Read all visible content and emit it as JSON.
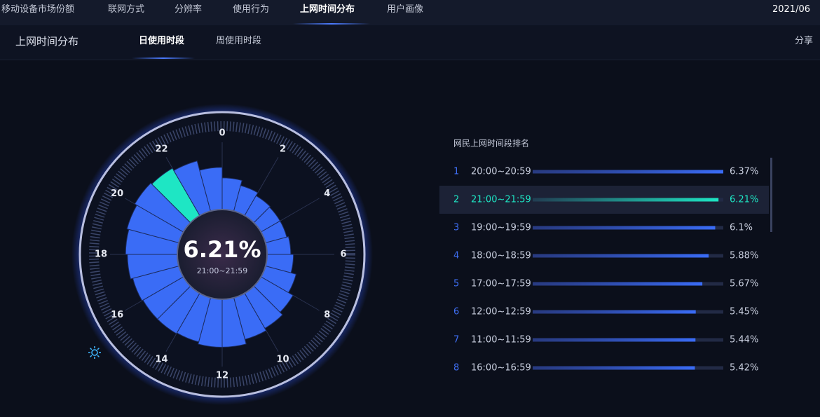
{
  "nav": {
    "tabs": [
      "移动设备市场份额",
      "联网方式",
      "分辨率",
      "使用行为",
      "上网时间分布",
      "用户画像"
    ],
    "active": 4,
    "date": "2021/06"
  },
  "subheader": {
    "title": "上网时间分布",
    "tabs": [
      "日使用时段",
      "周使用时段"
    ],
    "active": 0,
    "share": "分享"
  },
  "chart_data": {
    "type": "polar-bar",
    "categories": [
      "0",
      null,
      "2",
      null,
      "4",
      null,
      "6",
      null,
      "8",
      null,
      "10",
      null,
      "12",
      null,
      "14",
      null,
      "16",
      null,
      "18",
      null,
      "20",
      null,
      "22",
      null
    ],
    "values": [
      3.6,
      3.0,
      2.6,
      2.5,
      2.5,
      2.7,
      3.0,
      3.6,
      4.2,
      4.6,
      4.9,
      5.44,
      5.45,
      5.2,
      5.3,
      5.3,
      5.42,
      5.67,
      5.88,
      6.1,
      6.37,
      6.21,
      5.9,
      4.8
    ],
    "color": "#3a6cf6",
    "highlight": {
      "index": 21,
      "color": "#1ee6c4",
      "label": "6.21%",
      "range": "21:00~21:59"
    }
  },
  "ranking": {
    "title": "网民上网时间段排名",
    "highlight": 1,
    "rows": [
      {
        "rank": 1,
        "time": "20:00~20:59",
        "value": 6.37,
        "value_label": "6.37%"
      },
      {
        "rank": 2,
        "time": "21:00~21:59",
        "value": 6.21,
        "value_label": "6.21%"
      },
      {
        "rank": 3,
        "time": "19:00~19:59",
        "value": 6.1,
        "value_label": "6.1%"
      },
      {
        "rank": 4,
        "time": "18:00~18:59",
        "value": 5.88,
        "value_label": "5.88%"
      },
      {
        "rank": 5,
        "time": "17:00~17:59",
        "value": 5.67,
        "value_label": "5.67%"
      },
      {
        "rank": 6,
        "time": "12:00~12:59",
        "value": 5.45,
        "value_label": "5.45%"
      },
      {
        "rank": 7,
        "time": "11:00~11:59",
        "value": 5.44,
        "value_label": "5.44%"
      },
      {
        "rank": 8,
        "time": "16:00~16:59",
        "value": 5.42,
        "value_label": "5.42%"
      }
    ]
  }
}
